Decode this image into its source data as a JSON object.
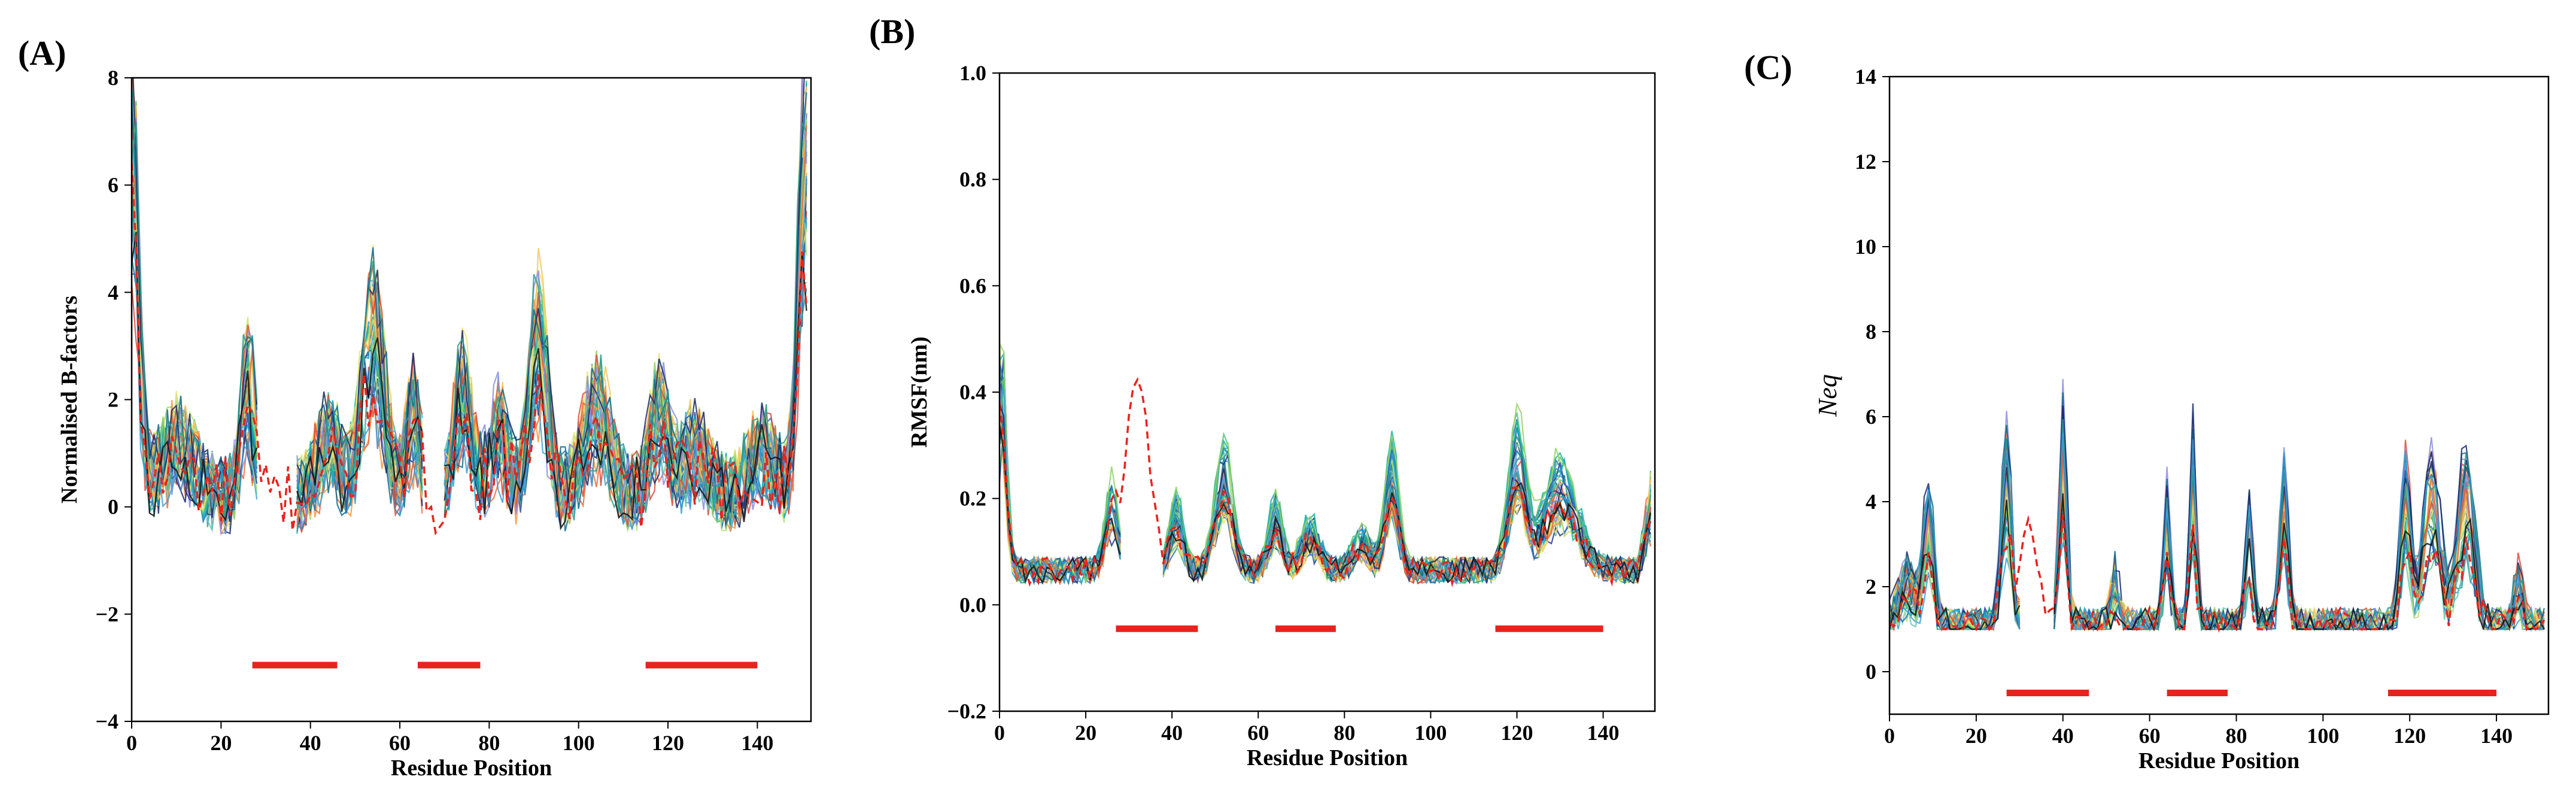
{
  "chart_data": [
    {
      "type": "line",
      "panel_label": "(A)",
      "xlabel": "Residue Position",
      "ylabel": "Normalised B-factors",
      "ylabel_style": "bold",
      "xlim": [
        0,
        152
      ],
      "ylim": [
        -4,
        8
      ],
      "xticks": [
        0,
        20,
        40,
        60,
        80,
        100,
        120,
        140
      ],
      "yticks": [
        -4,
        -2,
        0,
        2,
        4,
        6,
        8
      ],
      "xtick_labels": [
        "0",
        "20",
        "40",
        "60",
        "80",
        "100",
        "120",
        "140"
      ],
      "ytick_labels": [
        "−4",
        "−2",
        "0",
        "2",
        "4",
        "6",
        "8"
      ],
      "gaps": [
        [
          28,
          37
        ],
        [
          65,
          70
        ]
      ],
      "reference_series": {
        "name": "dashed red",
        "color": "#e8231c",
        "style": "dashed"
      },
      "segments": [
        {
          "x": [
            27,
            46
          ],
          "y": -2.95,
          "color": "#e8231c"
        },
        {
          "x": [
            64,
            78
          ],
          "y": -2.95,
          "color": "#e8231c"
        },
        {
          "x": [
            115,
            140
          ],
          "y": -2.95,
          "color": "#e8231c"
        }
      ],
      "profile": {
        "base": 0.2,
        "noise": 0.75,
        "end_start": 3.5,
        "end_end": 4.5,
        "ref_scale": 0.7,
        "peaks": [
          {
            "x": 1,
            "h": 3.5,
            "w": 1.2
          },
          {
            "x": 10,
            "h": 0.9,
            "w": 4
          },
          {
            "x": 26,
            "h": 2.0,
            "w": 1.5
          },
          {
            "x": 44,
            "h": 1.0,
            "w": 2.5
          },
          {
            "x": 54,
            "h": 3.0,
            "w": 2.5
          },
          {
            "x": 63,
            "h": 1.5,
            "w": 1.5
          },
          {
            "x": 74,
            "h": 1.8,
            "w": 2
          },
          {
            "x": 82,
            "h": 1.2,
            "w": 2
          },
          {
            "x": 91,
            "h": 2.8,
            "w": 2
          },
          {
            "x": 104,
            "h": 1.5,
            "w": 3
          },
          {
            "x": 118,
            "h": 1.5,
            "w": 2
          },
          {
            "x": 126,
            "h": 0.8,
            "w": 3
          },
          {
            "x": 141,
            "h": 0.8,
            "w": 3
          },
          {
            "x": 150,
            "h": 3.0,
            "w": 1.5
          }
        ]
      }
    },
    {
      "type": "line",
      "panel_label": "(B)",
      "xlabel": "Residue Position",
      "ylabel": "RMSF(nm)",
      "ylabel_style": "bold",
      "xlim": [
        0,
        152
      ],
      "ylim": [
        -0.2,
        1.0
      ],
      "xticks": [
        0,
        20,
        40,
        60,
        80,
        100,
        120,
        140
      ],
      "yticks": [
        -0.2,
        0.0,
        0.2,
        0.4,
        0.6,
        0.8,
        1.0
      ],
      "xtick_labels": [
        "0",
        "20",
        "40",
        "60",
        "80",
        "100",
        "120",
        "140"
      ],
      "ytick_labels": [
        "−0.2",
        "0.0",
        "0.2",
        "0.4",
        "0.6",
        "0.8",
        "1.0"
      ],
      "gaps": [
        [
          28,
          38
        ]
      ],
      "reference_series": {
        "name": "dashed red",
        "color": "#e8231c",
        "style": "dashed"
      },
      "segments": [
        {
          "x": [
            27,
            46
          ],
          "y": -0.045,
          "color": "#e8231c"
        },
        {
          "x": [
            64,
            78
          ],
          "y": -0.045,
          "color": "#e8231c"
        },
        {
          "x": [
            115,
            140
          ],
          "y": -0.045,
          "color": "#e8231c"
        }
      ],
      "profile": {
        "base": 0.065,
        "noise": 0.025,
        "end_start": 0.2,
        "end_end": 0.15,
        "ref_scale": 0.8,
        "peaks": [
          {
            "x": 1,
            "h": 0.2,
            "w": 1
          },
          {
            "x": 26,
            "h": 0.12,
            "w": 1.5
          },
          {
            "x": 41,
            "h": 0.1,
            "w": 1.5
          },
          {
            "x": 52,
            "h": 0.18,
            "w": 2
          },
          {
            "x": 64,
            "h": 0.1,
            "w": 1.5
          },
          {
            "x": 72,
            "h": 0.07,
            "w": 2
          },
          {
            "x": 84,
            "h": 0.05,
            "w": 2
          },
          {
            "x": 91,
            "h": 0.18,
            "w": 1.5
          },
          {
            "x": 120,
            "h": 0.2,
            "w": 2
          },
          {
            "x": 130,
            "h": 0.15,
            "w": 4
          }
        ]
      },
      "ref_peaks": [
        {
          "x": 32,
          "h": 0.38,
          "w": 2.5
        }
      ]
    },
    {
      "type": "line",
      "panel_label": "(C)",
      "xlabel": "Residue Position",
      "ylabel": "Neq",
      "ylabel_style": "italic",
      "xlim": [
        0,
        152
      ],
      "ylim": [
        -1,
        14
      ],
      "xticks": [
        0,
        20,
        40,
        60,
        80,
        100,
        120,
        140
      ],
      "yticks": [
        0,
        2,
        4,
        6,
        8,
        10,
        12,
        14
      ],
      "xtick_labels": [
        "0",
        "20",
        "40",
        "60",
        "80",
        "100",
        "120",
        "140"
      ],
      "ytick_labels": [
        "0",
        "2",
        "4",
        "6",
        "8",
        "10",
        "12",
        "14"
      ],
      "gaps": [
        [
          30,
          38
        ]
      ],
      "reference_series": {
        "name": "dashed red",
        "color": "#e8231c",
        "style": "dashed"
      },
      "segments": [
        {
          "x": [
            27,
            46
          ],
          "y": -0.5,
          "color": "#e8231c"
        },
        {
          "x": [
            64,
            78
          ],
          "y": -0.5,
          "color": "#e8231c"
        },
        {
          "x": [
            115,
            140
          ],
          "y": -0.5,
          "color": "#e8231c"
        }
      ],
      "profile": {
        "base": 1.0,
        "noise": 0.5,
        "end_start": 0,
        "end_end": 0,
        "ref_scale": 0.6,
        "floor": 1.0,
        "peaks": [
          {
            "x": 4,
            "h": 1.0,
            "w": 2
          },
          {
            "x": 9,
            "h": 2.5,
            "w": 1.2
          },
          {
            "x": 27,
            "h": 3.5,
            "w": 1.2
          },
          {
            "x": 40,
            "h": 4.0,
            "w": 0.9
          },
          {
            "x": 52,
            "h": 1.0,
            "w": 1
          },
          {
            "x": 64,
            "h": 2.5,
            "w": 0.8
          },
          {
            "x": 70,
            "h": 3.5,
            "w": 0.8
          },
          {
            "x": 83,
            "h": 2.5,
            "w": 0.8
          },
          {
            "x": 91,
            "h": 3.0,
            "w": 1
          },
          {
            "x": 119,
            "h": 3.0,
            "w": 1.2
          },
          {
            "x": 125,
            "h": 3.0,
            "w": 2
          },
          {
            "x": 133,
            "h": 3.0,
            "w": 2
          },
          {
            "x": 145,
            "h": 1.0,
            "w": 1
          }
        ]
      },
      "ref_peaks": [
        {
          "x": 32,
          "h": 2.5,
          "w": 2
        }
      ]
    }
  ],
  "palette": [
    "#1f3a93",
    "#2c6fbb",
    "#1f8fbf",
    "#17a9b8",
    "#1fb59c",
    "#57c27a",
    "#94d26a",
    "#c9e36b",
    "#ece47a",
    "#f7c55a",
    "#f59a44",
    "#ee6a39",
    "#d94b3a",
    "#8b8fe0",
    "#0e6b8f",
    "#1a2a6c",
    "#2a9d8f",
    "#3aa0d5",
    "#6ac8b0",
    "#b8e07a"
  ]
}
